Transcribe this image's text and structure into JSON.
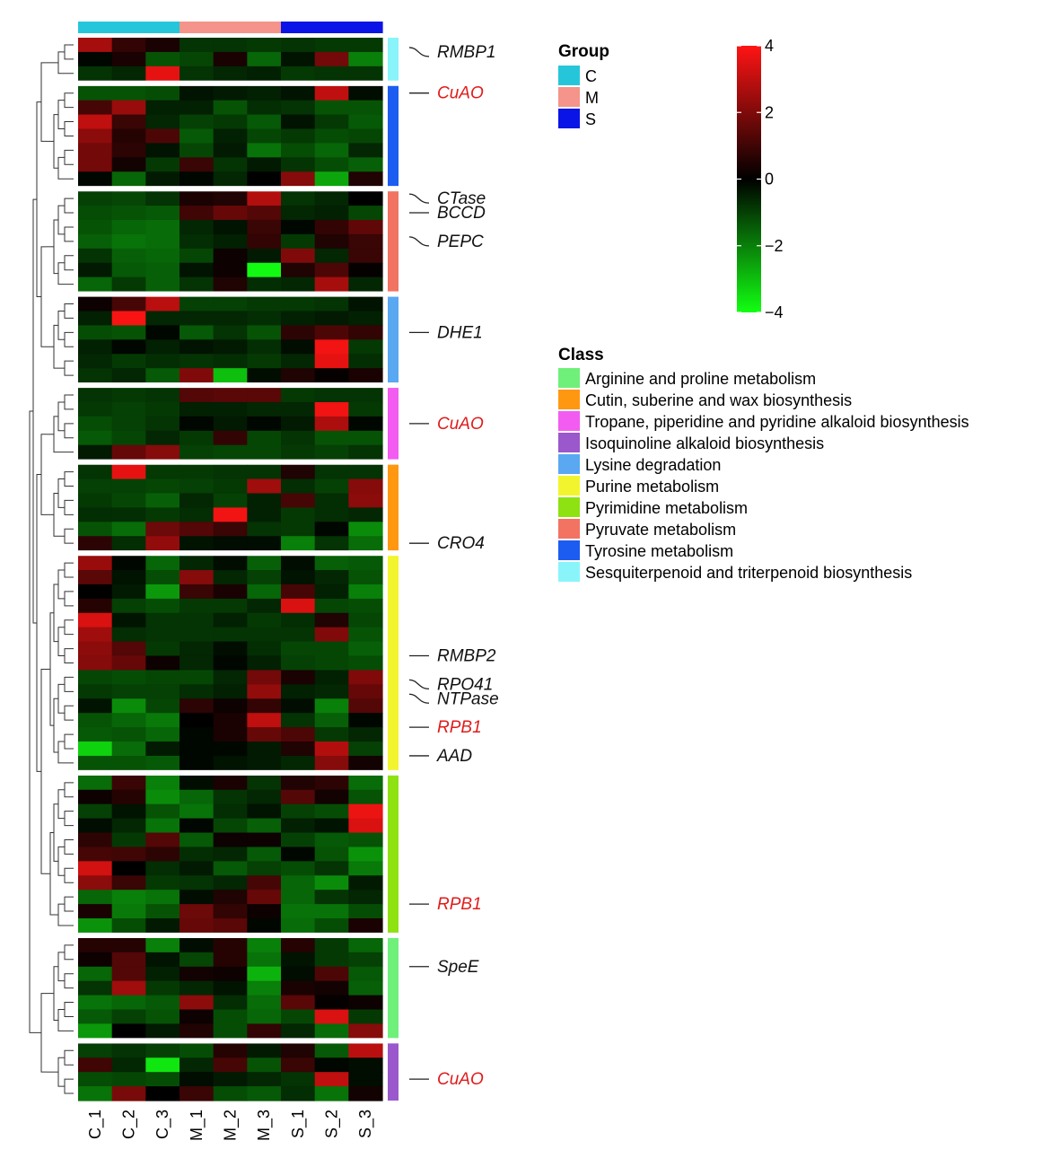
{
  "chart_data": {
    "type": "heatmap",
    "title": "",
    "columns": [
      "C_1",
      "C_2",
      "C_3",
      "M_1",
      "M_2",
      "M_3",
      "S_1",
      "S_2",
      "S_3"
    ],
    "column_groups": [
      "C",
      "C",
      "C",
      "M",
      "M",
      "M",
      "S",
      "S",
      "S"
    ],
    "group_legend": {
      "title": "Group",
      "items": [
        {
          "label": "C",
          "color": "#26c6da"
        },
        {
          "label": "M",
          "color": "#f4948a"
        },
        {
          "label": "S",
          "color": "#0a14e6"
        }
      ]
    },
    "color_scale": {
      "min": -4,
      "max": 4,
      "ticks": [
        4,
        2,
        0,
        -2,
        -4
      ],
      "tick_labels": [
        "4",
        "2",
        "0",
        "−2",
        "−4"
      ],
      "low_color": "#12ff12",
      "mid_color": "#000000",
      "high_color": "#ff1414"
    },
    "class_legend": {
      "title": "Class",
      "items": [
        {
          "label": "Arginine and proline metabolism",
          "color": "#6ff07b"
        },
        {
          "label": "Cutin, suberine and wax biosynthesis",
          "color": "#ff9810"
        },
        {
          "label": "Tropane, piperidine and pyridine alkaloid biosynthesis",
          "color": "#f25cf0"
        },
        {
          "label": "Isoquinoline alkaloid biosynthesis",
          "color": "#9a58cc"
        },
        {
          "label": "Lysine degradation",
          "color": "#5aa8f2"
        },
        {
          "label": "Purine metabolism",
          "color": "#f2f52e"
        },
        {
          "label": "Pyrimidine metabolism",
          "color": "#8ee212"
        },
        {
          "label": "Pyruvate metabolism",
          "color": "#f27362"
        },
        {
          "label": "Tyrosine metabolism",
          "color": "#1c5cf0"
        },
        {
          "label": "Sesquiterpenoid and triterpenoid biosynthesis",
          "color": "#8af4fb"
        }
      ]
    },
    "blocks": [
      {
        "class": "Sesquiterpenoid and triterpenoid biosynthesis",
        "class_color": "#8af4fb",
        "rows": [
          [
            2.6,
            0.8,
            0.4,
            -0.8,
            -0.8,
            -0.9,
            -0.8,
            -0.9,
            -0.9
          ],
          [
            -0.1,
            0.4,
            -1.3,
            -1.1,
            0.4,
            -1.6,
            -0.3,
            1.8,
            -2.0
          ],
          [
            -0.8,
            -0.6,
            3.6,
            -0.8,
            -0.6,
            -0.5,
            -0.9,
            -0.8,
            -0.8
          ]
        ],
        "labels": [
          {
            "text": "RMBP1",
            "row": 0.5,
            "red": false,
            "curve": true
          }
        ]
      },
      {
        "class": "Tyrosine metabolism",
        "class_color": "#1c5cf0",
        "rows": [
          [
            -1.3,
            -1.3,
            -1.2,
            -0.3,
            -0.4,
            -0.5,
            -0.3,
            3.0,
            -0.2
          ],
          [
            1.1,
            2.4,
            -0.5,
            -0.5,
            -1.3,
            -0.7,
            -0.8,
            -1.3,
            -1.3
          ],
          [
            3.0,
            0.9,
            -0.6,
            -1.0,
            -0.9,
            -1.4,
            -0.3,
            -0.9,
            -1.4
          ],
          [
            2.2,
            0.6,
            1.2,
            -1.4,
            -0.5,
            -1.1,
            -0.9,
            -1.2,
            -1.1
          ],
          [
            1.8,
            0.7,
            -0.3,
            -1.1,
            -0.4,
            -1.8,
            -1.2,
            -1.6,
            -0.6
          ],
          [
            1.8,
            0.3,
            -0.9,
            0.9,
            -0.8,
            -0.4,
            -0.8,
            -1.2,
            -1.5
          ],
          [
            -0.1,
            -1.6,
            -0.4,
            -0.1,
            -0.6,
            0.0,
            2.1,
            -2.6,
            0.5
          ]
        ],
        "labels": [
          {
            "text": "CuAO",
            "row": 0,
            "red": true,
            "curve": false
          }
        ]
      },
      {
        "class": "Pyruvate metabolism",
        "class_color": "#f27362",
        "rows": [
          [
            -1.0,
            -1.1,
            -0.8,
            0.4,
            0.5,
            2.8,
            -0.8,
            -0.6,
            0.0
          ],
          [
            -1.2,
            -1.3,
            -1.4,
            1.0,
            1.6,
            1.3,
            -0.6,
            -0.5,
            -1.1
          ],
          [
            -1.3,
            -1.6,
            -1.7,
            -0.6,
            -0.3,
            0.9,
            -0.1,
            0.8,
            1.5
          ],
          [
            -1.5,
            -1.8,
            -1.7,
            -0.7,
            -0.5,
            0.8,
            -0.9,
            0.5,
            0.9
          ],
          [
            -0.8,
            -1.5,
            -1.6,
            -1.1,
            0.2,
            -0.4,
            2.0,
            -0.6,
            0.9
          ],
          [
            -0.4,
            -1.4,
            -1.5,
            -0.3,
            0.2,
            -3.9,
            0.5,
            1.2,
            0.1
          ],
          [
            -1.6,
            -0.9,
            -1.5,
            -0.8,
            0.5,
            -0.7,
            -0.6,
            2.6,
            -0.6
          ]
        ],
        "labels": [
          {
            "text": "CTase",
            "row": 0,
            "red": false,
            "curve": true
          },
          {
            "text": "BCCD",
            "row": 1,
            "red": false,
            "curve": false
          },
          {
            "text": "PEPC",
            "row": 3,
            "red": false,
            "curve": true
          }
        ]
      },
      {
        "class": "Lysine degradation",
        "class_color": "#5aa8f2",
        "rows": [
          [
            0.2,
            1.1,
            2.9,
            -1.0,
            -1.0,
            -0.9,
            -0.9,
            -0.8,
            -0.3
          ],
          [
            -0.5,
            3.9,
            -0.6,
            -0.6,
            -0.6,
            -0.7,
            -0.5,
            -0.4,
            -0.5
          ],
          [
            -1.2,
            -1.3,
            -0.1,
            -1.4,
            -0.8,
            -1.3,
            0.7,
            1.2,
            0.8
          ],
          [
            -0.5,
            -0.1,
            -0.5,
            -0.3,
            -0.4,
            -0.7,
            -0.2,
            3.8,
            -0.9
          ],
          [
            -0.6,
            -0.9,
            -0.7,
            -0.8,
            -0.7,
            -0.9,
            -0.6,
            3.6,
            -0.7
          ],
          [
            -0.8,
            -0.6,
            -1.4,
            2.0,
            -3.0,
            -0.2,
            0.5,
            0.1,
            0.4
          ]
        ],
        "labels": [
          {
            "text": "DHE1",
            "row": 2,
            "red": false,
            "curve": false
          }
        ]
      },
      {
        "class": "Tropane, piperidine and pyridine alkaloid biosynthesis",
        "class_color": "#f25cf0",
        "rows": [
          [
            -0.8,
            -0.9,
            -0.8,
            1.3,
            1.4,
            1.4,
            -0.9,
            -0.8,
            -0.8
          ],
          [
            -0.9,
            -1.0,
            -0.9,
            -0.5,
            -0.5,
            -0.6,
            -0.6,
            3.8,
            -0.9
          ],
          [
            -1.2,
            -1.0,
            -0.8,
            -0.1,
            -0.4,
            -0.1,
            -0.4,
            2.7,
            -0.1
          ],
          [
            -1.4,
            -1.1,
            -0.6,
            -0.9,
            0.8,
            -1.1,
            -0.8,
            -1.3,
            -1.3
          ],
          [
            -0.4,
            1.6,
            2.1,
            -1.0,
            -1.1,
            -1.1,
            -0.9,
            -1.0,
            -0.8
          ]
        ],
        "labels": [
          {
            "text": "CuAO",
            "row": 2,
            "red": true,
            "curve": false
          }
        ]
      },
      {
        "class": "Cutin, suberine and wax biosynthesis",
        "class_color": "#ff9810",
        "rows": [
          [
            -0.8,
            3.6,
            -0.9,
            -0.9,
            -0.8,
            -0.8,
            0.5,
            -0.8,
            -0.8
          ],
          [
            -1.0,
            -1.0,
            -1.1,
            -1.0,
            -0.9,
            2.5,
            -0.7,
            -1.0,
            2.1
          ],
          [
            -0.9,
            -1.1,
            -1.5,
            -0.6,
            -1.0,
            -0.5,
            1.1,
            -0.7,
            2.2
          ],
          [
            -0.7,
            -0.7,
            -0.9,
            -0.7,
            3.8,
            -0.5,
            -0.9,
            -0.7,
            -0.6
          ],
          [
            -1.3,
            -1.7,
            1.7,
            1.3,
            0.9,
            -0.8,
            -0.9,
            -0.1,
            -2.2
          ],
          [
            0.7,
            -0.7,
            2.3,
            -0.3,
            -0.2,
            -0.2,
            -2.0,
            -0.8,
            -1.7
          ]
        ],
        "labels": [
          {
            "text": "CRO4",
            "row": 5,
            "red": false,
            "curve": false
          }
        ]
      },
      {
        "class": "Purine metabolism",
        "class_color": "#f2f52e",
        "rows": [
          [
            2.4,
            -0.1,
            -1.6,
            -0.6,
            -0.2,
            -1.5,
            -0.2,
            -1.5,
            -1.4
          ],
          [
            1.4,
            -0.3,
            -1.2,
            2.1,
            -0.6,
            -1.0,
            -0.3,
            -0.6,
            -1.3
          ],
          [
            0.0,
            -0.4,
            -2.4,
            0.9,
            0.4,
            -1.6,
            1.1,
            -0.5,
            -2.0
          ],
          [
            0.6,
            -1.0,
            -1.2,
            -0.9,
            -0.9,
            -0.6,
            3.4,
            -1.1,
            -1.2
          ],
          [
            3.4,
            -0.3,
            -0.8,
            -0.8,
            -0.5,
            -0.9,
            -0.7,
            0.5,
            -1.1
          ],
          [
            2.5,
            -0.7,
            -0.8,
            -0.8,
            -0.8,
            -0.8,
            -0.8,
            2.0,
            -1.3
          ],
          [
            2.2,
            1.3,
            -0.9,
            -0.6,
            -0.2,
            -0.7,
            -1.1,
            -1.1,
            -1.5
          ],
          [
            2.1,
            1.6,
            0.2,
            -0.6,
            -0.1,
            -0.5,
            -1.0,
            -1.1,
            -1.2
          ],
          [
            -1.1,
            -1.2,
            -1.1,
            -1.1,
            -0.6,
            1.8,
            0.4,
            -0.5,
            2.0
          ],
          [
            -0.9,
            -1.0,
            -1.0,
            -0.7,
            -0.5,
            2.3,
            -0.5,
            -0.6,
            1.6
          ],
          [
            -0.3,
            -2.2,
            -1.1,
            0.7,
            0.2,
            0.8,
            -0.2,
            -2.0,
            1.3
          ],
          [
            -1.3,
            -1.6,
            -1.9,
            0.0,
            0.4,
            3.0,
            -0.8,
            -1.5,
            -0.1
          ],
          [
            -1.4,
            -1.3,
            -1.6,
            -0.1,
            0.4,
            1.6,
            1.2,
            -0.9,
            -0.6
          ],
          [
            -3.3,
            -1.7,
            -0.4,
            -0.1,
            -0.1,
            -0.4,
            0.5,
            2.8,
            -1.0
          ],
          [
            -1.3,
            -1.3,
            -1.4,
            -0.1,
            -0.3,
            -0.4,
            -0.6,
            2.1,
            0.3
          ]
        ],
        "labels": [
          {
            "text": "RMBP2",
            "row": 6.5,
            "red": false,
            "curve": false
          },
          {
            "text": "RPO41",
            "row": 8.5,
            "red": false,
            "curve": true
          },
          {
            "text": "NTPase",
            "row": 9.5,
            "red": false,
            "curve": true
          },
          {
            "text": "RPB1",
            "row": 11.5,
            "red": true,
            "curve": false
          },
          {
            "text": "AAD",
            "row": 13.5,
            "red": false,
            "curve": false
          }
        ]
      },
      {
        "class": "Pyrimidine metabolism",
        "class_color": "#8ee212",
        "rows": [
          [
            -1.7,
            0.9,
            -2.0,
            -0.2,
            0.4,
            -0.8,
            0.5,
            0.7,
            -1.7
          ],
          [
            0.2,
            0.6,
            -2.2,
            -1.6,
            -0.8,
            -0.6,
            1.3,
            0.3,
            -1.3
          ],
          [
            -1.0,
            -0.3,
            -1.3,
            -1.8,
            -0.7,
            -0.3,
            -1.0,
            -1.2,
            3.7
          ],
          [
            -0.2,
            -0.6,
            -1.8,
            -0.1,
            -1.1,
            -1.5,
            -0.5,
            -0.3,
            3.4
          ],
          [
            0.7,
            -0.9,
            1.3,
            -1.4,
            0.2,
            0.2,
            -1.0,
            -1.4,
            -1.3
          ],
          [
            1.1,
            1.0,
            0.7,
            -0.7,
            -0.6,
            -1.4,
            -0.1,
            -1.3,
            -2.3
          ],
          [
            3.3,
            0.0,
            -0.7,
            -0.4,
            -1.4,
            -1.0,
            -1.2,
            -0.8,
            -1.9
          ],
          [
            2.2,
            0.9,
            -0.9,
            -0.8,
            -0.6,
            1.1,
            -1.6,
            -2.2,
            -0.4
          ],
          [
            -1.6,
            -2.0,
            -1.8,
            -0.2,
            0.5,
            1.6,
            -1.6,
            -0.8,
            -0.6
          ],
          [
            0.4,
            -1.9,
            -1.3,
            1.7,
            0.8,
            0.2,
            -1.8,
            -1.8,
            -1.2
          ],
          [
            -2.3,
            -1.2,
            -0.4,
            1.6,
            1.4,
            -0.1,
            -1.7,
            -1.2,
            0.4
          ]
        ],
        "labels": [
          {
            "text": "RPB1",
            "row": 8.5,
            "red": true,
            "curve": false
          }
        ]
      },
      {
        "class": "Arginine and proline metabolism",
        "class_color": "#6ff07b",
        "rows": [
          [
            0.6,
            0.6,
            -2.0,
            -0.2,
            0.6,
            -2.0,
            0.6,
            -0.9,
            -1.6
          ],
          [
            0.2,
            1.3,
            -0.3,
            -1.1,
            0.6,
            -1.8,
            -0.3,
            -0.9,
            -1.0
          ],
          [
            -1.6,
            1.3,
            -0.5,
            0.3,
            0.2,
            -2.8,
            -0.2,
            1.2,
            -1.4
          ],
          [
            -0.8,
            2.5,
            -0.9,
            -0.6,
            -0.3,
            -2.0,
            0.4,
            0.3,
            -1.5
          ],
          [
            -1.8,
            -1.6,
            -1.4,
            2.2,
            -0.7,
            -1.7,
            1.4,
            0.1,
            0.2
          ],
          [
            -1.4,
            -1.0,
            -1.3,
            0.2,
            -1.2,
            -1.6,
            -1.1,
            3.4,
            -0.9
          ],
          [
            -2.4,
            0.0,
            -0.4,
            0.5,
            -1.2,
            0.8,
            -0.6,
            -1.7,
            2.1
          ]
        ],
        "labels": [
          {
            "text": "SpeE",
            "row": 1.5,
            "red": false,
            "curve": false
          }
        ]
      },
      {
        "class": "Isoquinoline alkaloid biosynthesis",
        "class_color": "#9a58cc",
        "rows": [
          [
            -1.0,
            -0.8,
            -1.0,
            -1.2,
            0.6,
            -0.4,
            0.5,
            -1.4,
            2.9
          ],
          [
            1.0,
            -0.6,
            -3.6,
            -0.6,
            1.1,
            -1.3,
            0.9,
            -0.1,
            -0.2
          ],
          [
            -1.2,
            -1.1,
            -1.2,
            -0.2,
            -0.4,
            -0.6,
            -0.8,
            3.0,
            -0.2
          ],
          [
            -1.8,
            1.9,
            0.0,
            0.9,
            -1.2,
            -1.4,
            -0.7,
            -1.8,
            0.3
          ]
        ],
        "labels": [
          {
            "text": "CuAO",
            "row": 2,
            "red": true,
            "curve": false
          }
        ]
      }
    ]
  }
}
